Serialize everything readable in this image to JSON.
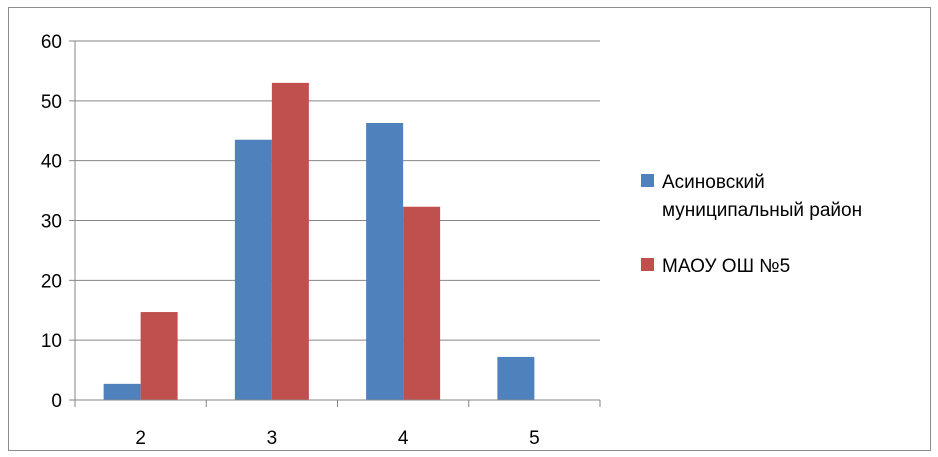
{
  "chart_data": {
    "type": "bar",
    "title": "",
    "xlabel": "",
    "ylabel": "",
    "categories": [
      "2",
      "3",
      "4",
      "5"
    ],
    "series": [
      {
        "name": "Асиновский муниципальный район",
        "name_lines": [
          "Асиновский",
          "муниципальный район"
        ],
        "color": "#4f81bd",
        "values": [
          2.7,
          43.5,
          46.3,
          7.2
        ]
      },
      {
        "name": "МАОУ ОШ №5",
        "name_lines": [
          "МАОУ ОШ №5"
        ],
        "color": "#c0504d",
        "values": [
          14.7,
          53.0,
          32.3,
          0
        ]
      }
    ],
    "ylim": [
      0,
      60
    ],
    "yticks": [
      "0",
      "10",
      "20",
      "30",
      "40",
      "50",
      "60"
    ],
    "grid": true,
    "legend": "right"
  }
}
